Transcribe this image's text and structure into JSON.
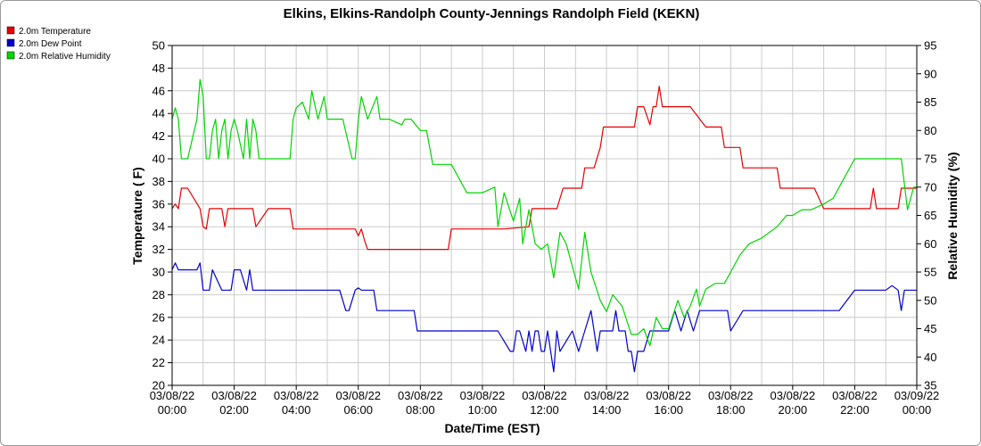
{
  "chart_data": {
    "type": "line",
    "title": "Elkins, Elkins-Randolph County-Jennings Randolph Field (KEKN)",
    "xlabel": "Date/Time (EST)",
    "ylabel": "Temperature ( F)",
    "y2label": "Relative Humidity (%)",
    "ylim": [
      20,
      50
    ],
    "y2lim": [
      35,
      95
    ],
    "yticks": [
      "20",
      "22",
      "24",
      "26",
      "28",
      "30",
      "32",
      "34",
      "36",
      "38",
      "40",
      "42",
      "44",
      "46",
      "48",
      "50"
    ],
    "y2ticks": [
      "35",
      "40",
      "45",
      "50",
      "55",
      "60",
      "65",
      "70",
      "75",
      "80",
      "85",
      "90",
      "95"
    ],
    "xlim": [
      0,
      24
    ],
    "xticks": [
      {
        "date": "03/08/22",
        "time": "00:00"
      },
      {
        "date": "03/08/22",
        "time": "02:00"
      },
      {
        "date": "03/08/22",
        "time": "04:00"
      },
      {
        "date": "03/08/22",
        "time": "06:00"
      },
      {
        "date": "03/08/22",
        "time": "08:00"
      },
      {
        "date": "03/08/22",
        "time": "10:00"
      },
      {
        "date": "03/08/22",
        "time": "12:00"
      },
      {
        "date": "03/08/22",
        "time": "14:00"
      },
      {
        "date": "03/08/22",
        "time": "16:00"
      },
      {
        "date": "03/08/22",
        "time": "18:00"
      },
      {
        "date": "03/08/22",
        "time": "20:00"
      },
      {
        "date": "03/08/22",
        "time": "22:00"
      },
      {
        "date": "03/09/22",
        "time": "00:00"
      }
    ],
    "grid": true,
    "legend_position": "top-left",
    "series": [
      {
        "name": "2.0m Temperature",
        "color": "#e60000",
        "axis": "left",
        "x": [
          0,
          0.1,
          0.2,
          0.3,
          0.4,
          0.5,
          0.9,
          1.0,
          1.1,
          1.2,
          1.3,
          1.6,
          1.7,
          1.8,
          1.9,
          2.0,
          2.2,
          2.6,
          2.7,
          3.1,
          3.2,
          3.3,
          3.4,
          3.5,
          3.8,
          3.9,
          4.3,
          4.4,
          5.9,
          6.0,
          6.1,
          6.2,
          6.3,
          8.0,
          8.1,
          8.9,
          9.0,
          10.4,
          10.5,
          10.7,
          11.5,
          11.6,
          12.0,
          12.2,
          12.4,
          12.6,
          13.2,
          13.3,
          13.6,
          13.8,
          13.9,
          14.5,
          14.9,
          15.0,
          15.2,
          15.4,
          15.5,
          15.6,
          15.7,
          15.8,
          16.0,
          16.2,
          16.7,
          17.2,
          17.7,
          17.8,
          18.3,
          18.4,
          18.6,
          19.5,
          19.6,
          20.0,
          20.3,
          20.7,
          21.0,
          21.3,
          21.5,
          22.5,
          22.6,
          22.7,
          23.4,
          23.5,
          23.7,
          23.9,
          24.0
        ],
        "values": [
          35.6,
          36.0,
          35.6,
          37.4,
          37.4,
          37.4,
          35.6,
          34.0,
          33.8,
          35.6,
          35.6,
          35.6,
          34.0,
          35.6,
          35.6,
          35.6,
          35.6,
          35.6,
          34.0,
          35.6,
          35.6,
          35.6,
          35.6,
          35.6,
          35.6,
          33.8,
          33.8,
          33.8,
          33.8,
          33.2,
          33.8,
          32.8,
          32.0,
          32.0,
          32.0,
          32.0,
          33.8,
          33.8,
          33.8,
          33.8,
          34.0,
          35.6,
          35.6,
          35.6,
          35.6,
          37.4,
          37.4,
          39.2,
          39.2,
          41.0,
          42.8,
          42.8,
          42.8,
          44.6,
          44.6,
          43.0,
          44.6,
          44.6,
          46.4,
          44.6,
          44.6,
          44.6,
          44.6,
          42.8,
          42.8,
          41.0,
          41.0,
          39.2,
          39.2,
          39.2,
          37.4,
          37.4,
          37.4,
          37.4,
          35.6,
          35.6,
          35.6,
          35.6,
          37.4,
          35.6,
          35.6,
          37.4,
          37.4,
          37.4,
          37.4
        ]
      },
      {
        "name": "2.0m Dew Point",
        "color": "#0000cc",
        "axis": "left",
        "x": [
          0,
          0.1,
          0.2,
          0.3,
          0.8,
          0.9,
          1.0,
          1.2,
          1.3,
          1.6,
          1.7,
          1.8,
          1.9,
          2.0,
          2.2,
          2.4,
          2.5,
          2.6,
          2.7,
          3.0,
          3.2,
          4.2,
          5.0,
          5.4,
          5.6,
          5.7,
          5.9,
          6.0,
          6.1,
          6.5,
          6.6,
          6.7,
          6.9,
          7.8,
          7.9,
          8.0,
          9.0,
          9.5,
          10.0,
          10.5,
          10.9,
          11.0,
          11.1,
          11.2,
          11.4,
          11.5,
          11.6,
          11.7,
          11.8,
          11.9,
          12.0,
          12.1,
          12.3,
          12.4,
          12.5,
          12.9,
          13.1,
          13.3,
          13.5,
          13.7,
          13.8,
          13.9,
          14.2,
          14.3,
          14.4,
          14.6,
          14.7,
          14.8,
          14.9,
          15.0,
          15.2,
          15.4,
          15.6,
          15.8,
          16.0,
          16.2,
          16.4,
          16.6,
          16.8,
          17.0,
          17.2,
          17.5,
          17.9,
          18.0,
          18.4,
          18.5,
          18.8,
          20.0,
          20.1,
          20.5,
          21.0,
          21.5,
          22.0,
          23.0,
          23.2,
          23.4,
          23.5,
          23.6,
          23.8,
          24.0
        ],
        "values": [
          30.2,
          30.8,
          30.2,
          30.2,
          30.2,
          30.8,
          28.4,
          28.4,
          30.2,
          28.4,
          28.4,
          28.4,
          28.4,
          30.2,
          30.2,
          28.4,
          30.2,
          28.4,
          28.4,
          28.4,
          28.4,
          28.4,
          28.4,
          28.4,
          26.6,
          26.6,
          28.4,
          28.6,
          28.4,
          28.4,
          26.6,
          26.6,
          26.6,
          26.6,
          24.8,
          24.8,
          24.8,
          24.8,
          24.8,
          24.8,
          23.0,
          23.0,
          24.8,
          24.8,
          23.0,
          24.8,
          23.0,
          24.8,
          24.8,
          23.0,
          23.0,
          24.8,
          21.2,
          24.8,
          23.0,
          24.8,
          23.0,
          24.8,
          26.6,
          23.0,
          24.8,
          24.8,
          24.8,
          26.6,
          24.8,
          24.8,
          23.0,
          23.0,
          21.2,
          23.0,
          23.0,
          24.8,
          24.8,
          24.8,
          24.8,
          26.6,
          24.8,
          26.6,
          24.8,
          26.6,
          26.6,
          26.6,
          26.6,
          24.8,
          26.6,
          26.6,
          26.6,
          26.6,
          26.6,
          26.6,
          26.6,
          26.6,
          28.4,
          28.4,
          28.8,
          28.4,
          26.6,
          28.4,
          28.4,
          28.4
        ]
      },
      {
        "name": "2.0m Relative Humidity",
        "color": "#00d600",
        "axis": "right",
        "x": [
          0,
          0.1,
          0.2,
          0.3,
          0.5,
          0.8,
          0.9,
          1.0,
          1.1,
          1.2,
          1.3,
          1.4,
          1.5,
          1.6,
          1.7,
          1.8,
          1.9,
          2.0,
          2.1,
          2.3,
          2.4,
          2.5,
          2.6,
          2.7,
          2.8,
          3.2,
          3.8,
          3.9,
          4.0,
          4.2,
          4.4,
          4.5,
          4.7,
          4.9,
          5.0,
          5.3,
          5.5,
          5.8,
          5.9,
          6.0,
          6.1,
          6.3,
          6.6,
          6.7,
          6.8,
          7.0,
          7.4,
          7.5,
          7.7,
          8.0,
          8.2,
          8.4,
          9.0,
          9.5,
          9.8,
          10.0,
          10.4,
          10.5,
          10.7,
          11.0,
          11.2,
          11.3,
          11.5,
          11.7,
          11.9,
          12.1,
          12.3,
          12.5,
          12.7,
          13.1,
          13.3,
          13.5,
          13.8,
          14.0,
          14.2,
          14.5,
          14.8,
          15.0,
          15.2,
          15.4,
          15.6,
          15.8,
          16.0,
          16.3,
          16.5,
          16.7,
          16.9,
          17.0,
          17.2,
          17.5,
          17.8,
          18.0,
          18.3,
          18.6,
          19.0,
          19.5,
          19.8,
          20.0,
          20.3,
          20.6,
          21.0,
          21.3,
          21.5,
          22.0,
          22.3,
          22.8,
          23.0,
          23.3,
          23.5,
          23.7,
          23.9,
          24.0
        ],
        "values": [
          82,
          84,
          82,
          75,
          75,
          82,
          89,
          86,
          75,
          75,
          80,
          82,
          75,
          80,
          82,
          75,
          80,
          82,
          80,
          75,
          82,
          75,
          82,
          80,
          75,
          75,
          75,
          82,
          84,
          85,
          82,
          87,
          82,
          86,
          82,
          82,
          82,
          75,
          75,
          82,
          86,
          82,
          86,
          82,
          82,
          82,
          81,
          82,
          82,
          80,
          80,
          74,
          74,
          69,
          69,
          69,
          70,
          63,
          69,
          64,
          68,
          60,
          66,
          60,
          59,
          60,
          54,
          62,
          60,
          52,
          62,
          55,
          50,
          48,
          51,
          49,
          44,
          44,
          45,
          42,
          47,
          45,
          45,
          50,
          47,
          49,
          52,
          49,
          52,
          53,
          53,
          55,
          58,
          60,
          61,
          63,
          65,
          65,
          66,
          66,
          67,
          68,
          70,
          75,
          75,
          75,
          75,
          75,
          75,
          66,
          70,
          70
        ]
      }
    ]
  }
}
